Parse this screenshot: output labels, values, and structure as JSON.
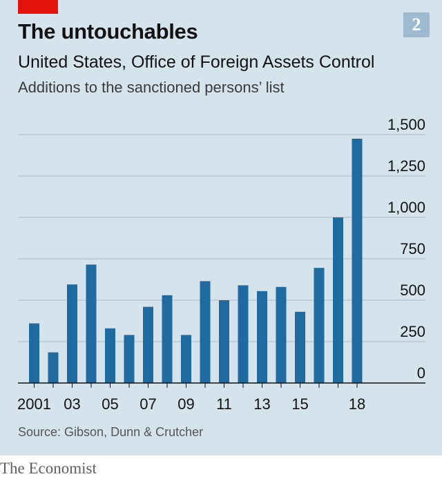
{
  "chart_number": "2",
  "title": "The untouchables",
  "subtitle": "United States, Office of Foreign Assets Control",
  "subtitle2": "Additions to the sanctioned persons’ list",
  "source": "Source: Gibson, Dunn & Crutcher",
  "brand": "The Economist",
  "colors": {
    "bar": "#1f6aa0",
    "background": "#d5e3ec",
    "accent": "#e3120b",
    "grid": "#aeb8c1",
    "axis": "#121212"
  },
  "chart_data": {
    "type": "bar",
    "categories": [
      "2001",
      "2002",
      "2003",
      "2004",
      "2005",
      "2006",
      "2007",
      "2008",
      "2009",
      "2010",
      "2011",
      "2012",
      "2013",
      "2014",
      "2015",
      "2016",
      "2017",
      "2018"
    ],
    "x_tick_labels": [
      "2001",
      "",
      "03",
      "",
      "05",
      "",
      "07",
      "",
      "09",
      "",
      "11",
      "",
      "13",
      "",
      "15",
      "",
      "",
      "18"
    ],
    "values": [
      360,
      185,
      595,
      715,
      330,
      290,
      460,
      530,
      290,
      615,
      500,
      590,
      555,
      580,
      430,
      695,
      1000,
      1475
    ],
    "ylim": [
      0,
      1500
    ],
    "y_ticks": [
      0,
      250,
      500,
      750,
      1000,
      1250,
      1500
    ],
    "y_tick_labels": [
      "0",
      "250",
      "500",
      "750",
      "1,000",
      "1,250",
      "1,500"
    ],
    "y_axis_position": "right",
    "grid": true
  }
}
